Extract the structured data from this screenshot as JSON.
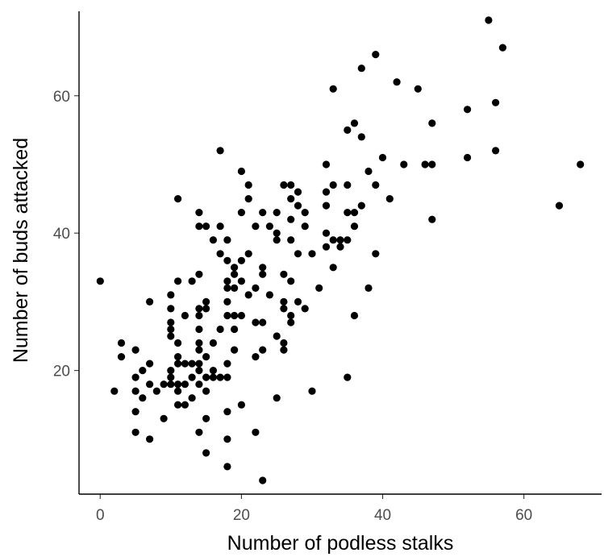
{
  "chart_data": {
    "type": "scatter",
    "title": "",
    "xlabel": "Number of podless stalks",
    "ylabel": "Number of buds attacked",
    "xlim": [
      -3,
      71
    ],
    "ylim": [
      2,
      73
    ],
    "xticks": [
      0,
      20,
      40,
      60
    ],
    "yticks": [
      20,
      40,
      60
    ],
    "xtick_labels": [
      "0",
      "20",
      "40",
      "60"
    ],
    "ytick_labels": [
      "20",
      "40",
      "60"
    ],
    "grid": false,
    "legend": "none",
    "point_color": "#000000",
    "points": [
      [
        0,
        33
      ],
      [
        2,
        17
      ],
      [
        3,
        24
      ],
      [
        3,
        22
      ],
      [
        5,
        23
      ],
      [
        5,
        19
      ],
      [
        5,
        17
      ],
      [
        5,
        14
      ],
      [
        5,
        11
      ],
      [
        6,
        20
      ],
      [
        6,
        16
      ],
      [
        7,
        30
      ],
      [
        7,
        21
      ],
      [
        7,
        18
      ],
      [
        7,
        10
      ],
      [
        8,
        17
      ],
      [
        9,
        18
      ],
      [
        9,
        13
      ],
      [
        10,
        31
      ],
      [
        10,
        29
      ],
      [
        10,
        27
      ],
      [
        10,
        26
      ],
      [
        10,
        25
      ],
      [
        10,
        20
      ],
      [
        10,
        19
      ],
      [
        10,
        18
      ],
      [
        11,
        45
      ],
      [
        11,
        33
      ],
      [
        11,
        24
      ],
      [
        11,
        22
      ],
      [
        11,
        21
      ],
      [
        11,
        18
      ],
      [
        11,
        17
      ],
      [
        11,
        15
      ],
      [
        12,
        28
      ],
      [
        12,
        21
      ],
      [
        12,
        18
      ],
      [
        12,
        15
      ],
      [
        13,
        33
      ],
      [
        13,
        21
      ],
      [
        13,
        19
      ],
      [
        13,
        16
      ],
      [
        14,
        43
      ],
      [
        14,
        41
      ],
      [
        14,
        34
      ],
      [
        14,
        29
      ],
      [
        14,
        28
      ],
      [
        14,
        26
      ],
      [
        14,
        24
      ],
      [
        14,
        23
      ],
      [
        14,
        21
      ],
      [
        14,
        20
      ],
      [
        14,
        18
      ],
      [
        14,
        11
      ],
      [
        15,
        41
      ],
      [
        15,
        30
      ],
      [
        15,
        29
      ],
      [
        15,
        22
      ],
      [
        15,
        19
      ],
      [
        15,
        17
      ],
      [
        15,
        13
      ],
      [
        15,
        8
      ],
      [
        16,
        39
      ],
      [
        16,
        24
      ],
      [
        16,
        20
      ],
      [
        16,
        19
      ],
      [
        17,
        52
      ],
      [
        17,
        41
      ],
      [
        17,
        37
      ],
      [
        17,
        26
      ],
      [
        17,
        19
      ],
      [
        18,
        39
      ],
      [
        18,
        36
      ],
      [
        18,
        33
      ],
      [
        18,
        32
      ],
      [
        18,
        30
      ],
      [
        18,
        28
      ],
      [
        18,
        21
      ],
      [
        18,
        19
      ],
      [
        18,
        14
      ],
      [
        18,
        10
      ],
      [
        18,
        6
      ],
      [
        19,
        35
      ],
      [
        19,
        34
      ],
      [
        19,
        32
      ],
      [
        19,
        28
      ],
      [
        19,
        26
      ],
      [
        19,
        23
      ],
      [
        20,
        49
      ],
      [
        20,
        43
      ],
      [
        20,
        36
      ],
      [
        20,
        33
      ],
      [
        20,
        28
      ],
      [
        20,
        15
      ],
      [
        21,
        47
      ],
      [
        21,
        45
      ],
      [
        21,
        37
      ],
      [
        21,
        31
      ],
      [
        22,
        41
      ],
      [
        22,
        32
      ],
      [
        22,
        27
      ],
      [
        22,
        22
      ],
      [
        22,
        11
      ],
      [
        23,
        43
      ],
      [
        23,
        35
      ],
      [
        23,
        34
      ],
      [
        23,
        27
      ],
      [
        23,
        23
      ],
      [
        23,
        4
      ],
      [
        24,
        41
      ],
      [
        24,
        31
      ],
      [
        25,
        43
      ],
      [
        25,
        40
      ],
      [
        25,
        39
      ],
      [
        25,
        25
      ],
      [
        25,
        16
      ],
      [
        26,
        47
      ],
      [
        26,
        34
      ],
      [
        26,
        30
      ],
      [
        26,
        29
      ],
      [
        26,
        24
      ],
      [
        26,
        23
      ],
      [
        27,
        47
      ],
      [
        27,
        45
      ],
      [
        27,
        42
      ],
      [
        27,
        39
      ],
      [
        27,
        33
      ],
      [
        27,
        28
      ],
      [
        27,
        27
      ],
      [
        28,
        46
      ],
      [
        28,
        44
      ],
      [
        28,
        37
      ],
      [
        28,
        30
      ],
      [
        29,
        43
      ],
      [
        29,
        41
      ],
      [
        29,
        29
      ],
      [
        30,
        37
      ],
      [
        30,
        17
      ],
      [
        31,
        32
      ],
      [
        32,
        50
      ],
      [
        32,
        46
      ],
      [
        32,
        44
      ],
      [
        32,
        40
      ],
      [
        32,
        38
      ],
      [
        33,
        61
      ],
      [
        33,
        47
      ],
      [
        33,
        39
      ],
      [
        33,
        35
      ],
      [
        34,
        39
      ],
      [
        34,
        38
      ],
      [
        35,
        55
      ],
      [
        35,
        47
      ],
      [
        35,
        43
      ],
      [
        35,
        39
      ],
      [
        35,
        19
      ],
      [
        36,
        56
      ],
      [
        36,
        43
      ],
      [
        36,
        41
      ],
      [
        36,
        28
      ],
      [
        37,
        64
      ],
      [
        37,
        54
      ],
      [
        37,
        44
      ],
      [
        38,
        49
      ],
      [
        38,
        32
      ],
      [
        39,
        66
      ],
      [
        39,
        47
      ],
      [
        39,
        37
      ],
      [
        40,
        51
      ],
      [
        41,
        45
      ],
      [
        42,
        62
      ],
      [
        43,
        50
      ],
      [
        45,
        61
      ],
      [
        46,
        50
      ],
      [
        47,
        56
      ],
      [
        47,
        50
      ],
      [
        47,
        42
      ],
      [
        52,
        58
      ],
      [
        52,
        51
      ],
      [
        55,
        71
      ],
      [
        56,
        59
      ],
      [
        56,
        52
      ],
      [
        57,
        67
      ],
      [
        65,
        44
      ],
      [
        68,
        50
      ]
    ]
  }
}
